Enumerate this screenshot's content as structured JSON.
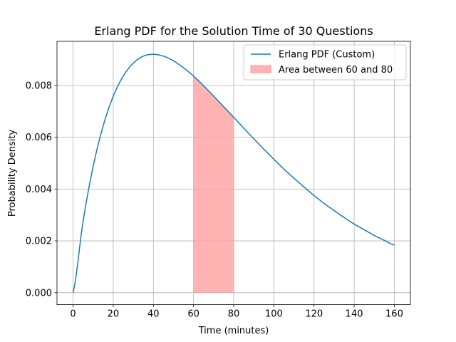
{
  "chart_data": {
    "type": "line",
    "title": "Erlang PDF for the Solution Time of 30 Questions",
    "xlabel": "Time (minutes)",
    "ylabel": "Probability Density",
    "xlim": [
      -8,
      168
    ],
    "ylim": [
      -0.000462,
      0.009702
    ],
    "xticks": [
      0,
      20,
      40,
      60,
      80,
      100,
      120,
      140,
      160
    ],
    "yticks": [
      0.0,
      0.002,
      0.004,
      0.006,
      0.008
    ],
    "xtick_labels": [
      "0",
      "20",
      "40",
      "60",
      "80",
      "100",
      "120",
      "140",
      "160"
    ],
    "ytick_labels": [
      "0.000",
      "0.002",
      "0.004",
      "0.006",
      "0.008"
    ],
    "grid": true,
    "legend_position": "top-right",
    "series": [
      {
        "name": "Erlang PDF (Custom)",
        "color": "#1f77b4",
        "x": [
          0,
          5,
          10,
          15,
          20,
          25,
          30,
          35,
          40,
          45,
          50,
          55,
          60,
          65,
          70,
          75,
          80,
          85,
          90,
          95,
          100,
          105,
          110,
          115,
          120,
          125,
          130,
          135,
          140,
          145,
          150,
          155,
          160
        ],
        "y": [
          0.0,
          0.00276,
          0.00487,
          0.00644,
          0.00758,
          0.00836,
          0.00886,
          0.00913,
          0.0092,
          0.00913,
          0.00895,
          0.00868,
          0.00836,
          0.00799,
          0.00759,
          0.00718,
          0.00677,
          0.00635,
          0.00594,
          0.00554,
          0.00515,
          0.00477,
          0.00442,
          0.00408,
          0.00375,
          0.00345,
          0.00317,
          0.0029,
          0.00265,
          0.00243,
          0.00221,
          0.00202,
          0.00184
        ]
      }
    ],
    "shaded_area": {
      "name": "Area between 60 and 80",
      "color": "#ff9999",
      "x_start": 60,
      "x_end": 80
    }
  }
}
